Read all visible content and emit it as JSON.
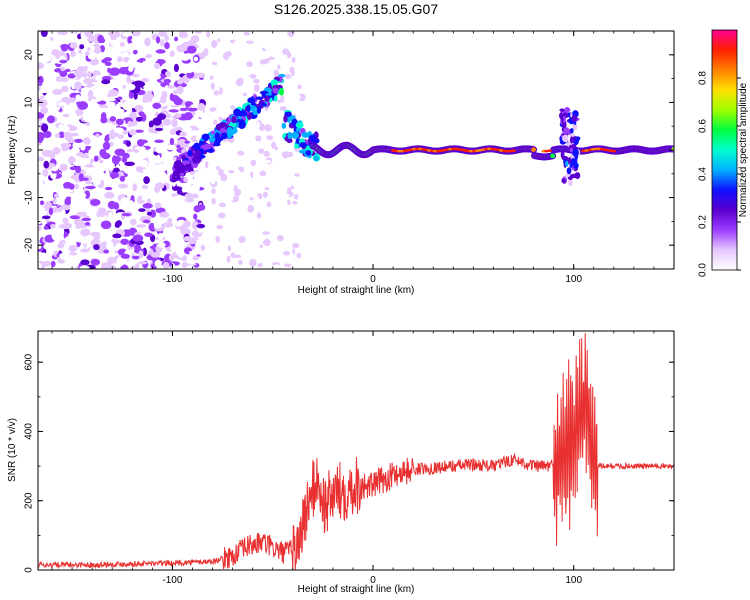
{
  "title": "S126.2025.338.15.05.G07",
  "chart_data": [
    {
      "type": "heatmap",
      "name": "spectrogram",
      "xlabel": "Height of straight line (km)",
      "ylabel": "Frequency (Hz)",
      "xlim": [
        -167,
        150
      ],
      "ylim": [
        -25,
        25
      ],
      "xticks": [
        -100,
        0,
        100
      ],
      "xtick_labels": [
        "-100",
        "0",
        "100"
      ],
      "yticks": [
        -20,
        -10,
        0,
        10,
        20
      ],
      "ytick_labels": [
        "-20",
        "-10",
        "0",
        "10",
        "20"
      ],
      "colorbar": {
        "label": "Normalized spectral amplitude",
        "range": [
          0,
          1
        ],
        "ticks": [
          0.0,
          0.2,
          0.4,
          0.6,
          0.8
        ],
        "tick_labels": [
          "0.0",
          "0.2",
          "0.4",
          "0.6",
          "0.8"
        ],
        "colors": [
          "#ffffff",
          "#e6c8ff",
          "#9b3dff",
          "#5a00d0",
          "#1010ff",
          "#00b0ff",
          "#00ffd0",
          "#00ff40",
          "#a0ff00",
          "#ffe000",
          "#ff8000",
          "#ff2000",
          "#ff0090"
        ]
      },
      "features": {
        "noise_region_x": [
          -167,
          -85
        ],
        "rising_tone": {
          "x": [
            -100,
            -45
          ],
          "y": [
            -5,
            14
          ]
        },
        "narrowband_line": {
          "x": [
            -30,
            150
          ],
          "y": 0
        }
      }
    },
    {
      "type": "line",
      "name": "snr",
      "xlabel": "Height of straight line (km)",
      "ylabel": "SNR (10 * v/v)",
      "xlim": [
        -167,
        150
      ],
      "ylim": [
        0,
        690
      ],
      "xticks": [
        -100,
        0,
        100
      ],
      "xtick_labels": [
        "-100",
        "0",
        "100"
      ],
      "yticks": [
        0,
        200,
        400,
        600
      ],
      "ytick_labels": [
        "0",
        "200",
        "400",
        "600"
      ],
      "line_color": "#e83030",
      "series": [
        {
          "name": "SNR",
          "x": [
            -167,
            -140,
            -120,
            -100,
            -80,
            -70,
            -62,
            -55,
            -45,
            -38,
            -32,
            -28,
            -24,
            -20,
            -14,
            -8,
            -2,
            5,
            12,
            20,
            30,
            40,
            50,
            60,
            70,
            80,
            88,
            94,
            100,
            104,
            106,
            110,
            112,
            120,
            130,
            140,
            150
          ],
          "y": [
            15,
            15,
            18,
            20,
            25,
            40,
            70,
            80,
            50,
            60,
            200,
            260,
            180,
            220,
            230,
            250,
            240,
            260,
            280,
            290,
            295,
            300,
            305,
            300,
            320,
            300,
            300,
            320,
            380,
            450,
            500,
            300,
            300,
            300,
            300,
            300,
            300
          ]
        }
      ]
    }
  ]
}
